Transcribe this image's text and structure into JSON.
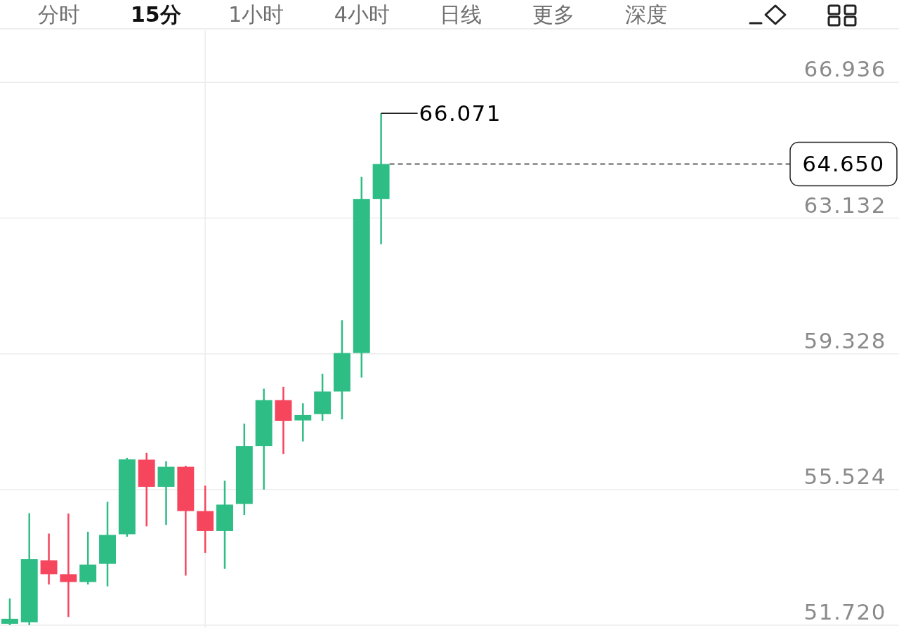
{
  "chart_data": {
    "type": "candlestick",
    "categories": [
      null,
      null,
      null,
      null,
      null,
      null,
      null,
      null,
      null,
      null,
      null,
      null,
      null,
      null,
      null,
      null,
      null,
      null,
      null,
      null,
      null,
      null,
      null,
      null,
      null,
      null,
      null,
      null,
      null,
      null,
      null,
      null,
      null,
      null,
      null,
      null,
      null,
      null,
      null,
      null,
      null,
      null,
      null,
      null,
      null,
      null
    ],
    "ohlc": [
      [
        51.76,
        52.47,
        51.72,
        51.9
      ],
      [
        51.8,
        54.86,
        51.72,
        53.57
      ],
      [
        53.54,
        54.29,
        52.86,
        53.15
      ],
      [
        53.15,
        54.85,
        51.95,
        52.93
      ],
      [
        52.93,
        54.34,
        52.86,
        53.42
      ],
      [
        53.44,
        55.18,
        52.81,
        54.25
      ],
      [
        54.27,
        56.41,
        54.2,
        56.37
      ],
      [
        56.36,
        56.55,
        54.49,
        55.6
      ],
      [
        55.6,
        56.32,
        54.53,
        56.16
      ],
      [
        56.16,
        56.19,
        53.11,
        54.92
      ],
      [
        54.92,
        55.63,
        53.75,
        54.36
      ],
      [
        54.36,
        55.77,
        53.3,
        55.1
      ],
      [
        55.12,
        57.37,
        54.81,
        56.74
      ],
      [
        56.74,
        58.35,
        55.52,
        58.03
      ],
      [
        58.03,
        58.4,
        56.52,
        57.45
      ],
      [
        57.46,
        57.94,
        56.87,
        57.61
      ],
      [
        57.64,
        58.77,
        57.45,
        58.27
      ],
      [
        58.27,
        60.27,
        57.49,
        59.35
      ],
      [
        59.35,
        64.29,
        58.66,
        63.67
      ],
      [
        63.67,
        66.071,
        62.4,
        64.65
      ],
      null,
      null,
      null,
      null,
      null,
      null,
      null,
      null,
      null,
      null,
      null,
      null,
      null,
      null,
      null,
      null,
      null,
      null,
      null,
      null,
      null,
      null,
      null,
      null,
      null,
      null
    ],
    "colors": [
      "#2ebd85",
      "#2ebd85",
      "#f6465d",
      "#f6465d",
      "#2ebd85",
      "#2ebd85",
      "#2ebd85",
      "#f6465d",
      "#2ebd85",
      "#f6465d",
      "#f6465d",
      "#2ebd85",
      "#2ebd85",
      "#2ebd85",
      "#f6465d",
      "#2ebd85",
      "#2ebd85",
      "#2ebd85",
      "#2ebd85",
      "#2ebd85",
      null,
      null,
      null,
      null,
      null,
      null,
      null,
      null,
      null,
      null,
      null,
      null,
      null,
      null,
      null,
      null,
      null,
      null,
      null,
      null,
      null,
      null,
      null,
      null,
      null,
      null
    ],
    "ylim": [
      51.72,
      68.4
    ],
    "yticks": [
      {
        "value": 51.72,
        "label": "51.720"
      },
      55.524,
      59.328,
      63.132,
      66.936
    ],
    "grid": true,
    "tick_labels": "y",
    "ref_lines": [
      {
        "axis": "y",
        "value": 64.65,
        "label": "64.650",
        "color": "#222222",
        "line_style": "dashed"
      }
    ],
    "annotations": [
      "分时",
      "15分",
      "1小时",
      "4小时",
      "日线",
      "更多",
      "深度",
      "66.071"
    ]
  }
}
